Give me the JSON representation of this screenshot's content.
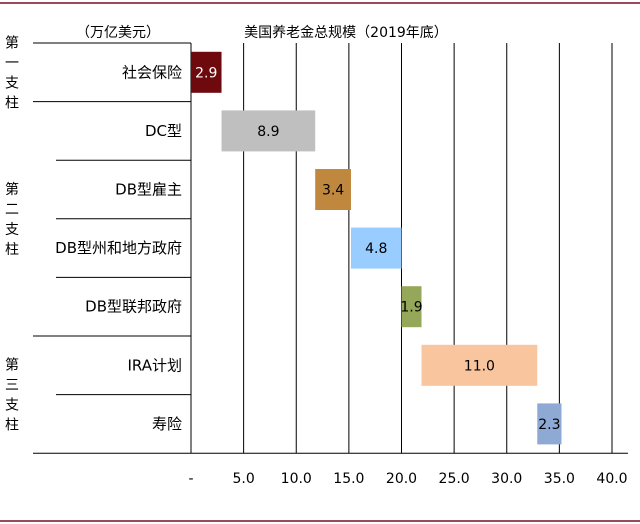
{
  "frame": {
    "line_color": "#9b4a5a"
  },
  "chart_data": {
    "type": "bar",
    "subtype": "waterfall-horizontal",
    "title": "美国养老金总规模（2019年底）",
    "unit_label": "（万亿美元）",
    "groups": [
      {
        "name": "第一支柱",
        "chars": [
          "第",
          "一",
          "支",
          "柱"
        ]
      },
      {
        "name": "第二支柱",
        "chars": [
          "第",
          "二",
          "支",
          "柱"
        ]
      },
      {
        "name": "第三支柱",
        "chars": [
          "第",
          "三",
          "支",
          "柱"
        ]
      }
    ],
    "categories": [
      "社会保险",
      "DC型",
      "DB型雇主",
      "DB型州和地方政府",
      "DB型联邦政府",
      "IRA计划",
      "寿险"
    ],
    "category_group": [
      0,
      1,
      1,
      1,
      1,
      2,
      2
    ],
    "starts": [
      0,
      2.9,
      11.8,
      15.2,
      20.0,
      21.9,
      32.9
    ],
    "values": [
      2.9,
      8.9,
      3.4,
      4.8,
      1.9,
      11.0,
      2.3
    ],
    "value_labels": [
      "2.9",
      "8.9",
      "3.4",
      "4.8",
      "1.9",
      "11.0",
      "2.3"
    ],
    "colors": [
      "#6e0a0e",
      "#bfbfbf",
      "#c0883f",
      "#99ccff",
      "#95a859",
      "#f9c59e",
      "#8ea9d3"
    ],
    "xlim": [
      0,
      40
    ],
    "xticks": [
      0,
      5,
      10,
      15,
      20,
      25,
      30,
      35,
      40
    ],
    "xtick_labels": [
      "-",
      "5.0",
      "10.0",
      "15.0",
      "20.0",
      "25.0",
      "30.0",
      "35.0",
      "40.0"
    ],
    "grid": true
  }
}
